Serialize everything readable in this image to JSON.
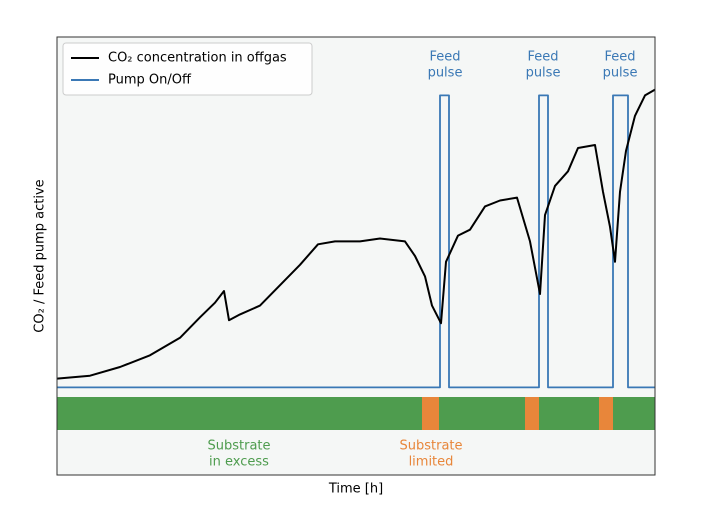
{
  "chart_data": {
    "type": "line",
    "xlabel": "Time [h]",
    "ylabel": "CO₂ / Feed pump active",
    "xlim": [
      0,
      598
    ],
    "ylim": [
      -0.3,
      1.2
    ],
    "legend": "upper left",
    "series": [
      {
        "name": "CO₂ concentration in offgas",
        "color": "#000000",
        "x": [
          0,
          33,
          63,
          93,
          123,
          143,
          158,
          167,
          172,
          183,
          203,
          223,
          243,
          261,
          278,
          303,
          323,
          348,
          358,
          368,
          375,
          384,
          389,
          401,
          413,
          428,
          443,
          460,
          473,
          483,
          488,
          498,
          511,
          521,
          538,
          546,
          553,
          558,
          563,
          569,
          578,
          588,
          598
        ],
        "values": [
          0.03,
          0.04,
          0.07,
          0.11,
          0.17,
          0.24,
          0.29,
          0.33,
          0.23,
          0.25,
          0.28,
          0.35,
          0.42,
          0.49,
          0.5,
          0.5,
          0.51,
          0.5,
          0.45,
          0.38,
          0.28,
          0.22,
          0.43,
          0.52,
          0.54,
          0.62,
          0.64,
          0.65,
          0.5,
          0.32,
          0.59,
          0.69,
          0.74,
          0.82,
          0.83,
          0.67,
          0.55,
          0.43,
          0.67,
          0.81,
          0.93,
          1.0,
          1.02
        ]
      },
      {
        "name": "Pump On/Off",
        "color": "#3a78b5",
        "x": [
          0,
          383,
          383,
          392,
          392,
          482,
          482,
          491,
          491,
          556,
          556,
          571,
          571,
          598
        ],
        "values": [
          0,
          0,
          1,
          1,
          0,
          0,
          1,
          1,
          0,
          0,
          1,
          1,
          0,
          0
        ]
      }
    ],
    "band_segments": [
      {
        "x": [
          0,
          365
        ],
        "color": "#4e9c4e"
      },
      {
        "x": [
          365,
          382
        ],
        "color": "#e8863a"
      },
      {
        "x": [
          382,
          468
        ],
        "color": "#4e9c4e"
      },
      {
        "x": [
          468,
          482
        ],
        "color": "#e8863a"
      },
      {
        "x": [
          482,
          542
        ],
        "color": "#4e9c4e"
      },
      {
        "x": [
          542,
          556
        ],
        "color": "#e8863a"
      },
      {
        "x": [
          556,
          598
        ],
        "color": "#4e9c4e"
      }
    ],
    "annotations": [
      {
        "lines": [
          "Feed",
          "pulse"
        ],
        "color": "#3a78b5"
      },
      {
        "lines": [
          "Feed",
          "pulse"
        ],
        "color": "#3a78b5"
      },
      {
        "lines": [
          "Feed",
          "pulse"
        ],
        "color": "#3a78b5"
      },
      {
        "lines": [
          "Substrate",
          "in excess"
        ],
        "color": "#4e9c4e"
      },
      {
        "lines": [
          "Substrate",
          "limited"
        ],
        "color": "#e8863a"
      }
    ]
  }
}
